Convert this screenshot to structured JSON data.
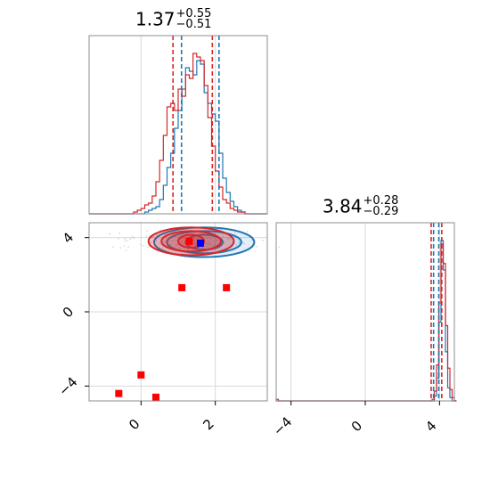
{
  "chart_data": {
    "type": "corner",
    "parameters": [
      {
        "title_value": "1.37",
        "title_plus": "+0.55",
        "title_minus": "−0.51",
        "range": [
          -1.4,
          3.4
        ],
        "ticks": [
          0,
          2
        ],
        "tick_labels": [
          "0",
          "2"
        ],
        "quantiles_red": [
          0.86,
          1.92
        ],
        "quantiles_blue": [
          1.09,
          2.1
        ]
      },
      {
        "title_value": "3.84",
        "title_plus": "+0.28",
        "title_minus": "−0.29",
        "range": [
          -4.8,
          4.8
        ],
        "ticks": [
          -4,
          0,
          4
        ],
        "tick_labels": [
          "−4",
          "0",
          "4"
        ],
        "quantiles_red": [
          3.55,
          4.12
        ],
        "quantiles_blue": [
          3.68,
          3.96
        ]
      }
    ],
    "hist_1d_param1": {
      "bin_edges_start": -1.4,
      "bin_width": 0.1,
      "red_counts": [
        0,
        0,
        0,
        0,
        0,
        0,
        0,
        0,
        0,
        0,
        0,
        0,
        1,
        2,
        3,
        5,
        6,
        10,
        18,
        30,
        44,
        60,
        62,
        58,
        70,
        66,
        78,
        76,
        90,
        88,
        86,
        72,
        54,
        38,
        24,
        15,
        8,
        6,
        3,
        2,
        1,
        1,
        0,
        0,
        0,
        0,
        0,
        0
      ],
      "blue_counts": [
        0,
        0,
        0,
        0,
        0,
        0,
        0,
        0,
        0,
        0,
        0,
        0,
        0,
        0,
        0,
        1,
        2,
        3,
        4,
        8,
        16,
        26,
        34,
        48,
        58,
        70,
        82,
        80,
        78,
        86,
        84,
        68,
        62,
        56,
        52,
        34,
        20,
        12,
        7,
        4,
        2,
        1,
        0,
        0,
        0,
        0,
        0,
        0
      ]
    },
    "hist_1d_param2": {
      "bin_edges_start": -4.8,
      "bin_width": 0.12,
      "red_counts": [
        1,
        0,
        0,
        0,
        0,
        0,
        0,
        0,
        0,
        0,
        0,
        0,
        0,
        0,
        0,
        0,
        0,
        0,
        0,
        0,
        0,
        0,
        0,
        0,
        0,
        0,
        0,
        0,
        0,
        0,
        0,
        0,
        0,
        0,
        0,
        0,
        0,
        0,
        0,
        0,
        0,
        0,
        0,
        0,
        0,
        0,
        0,
        0,
        0,
        0,
        0,
        0,
        0,
        0,
        0,
        0,
        0,
        0,
        0,
        0,
        0,
        0,
        0,
        0,
        0,
        0,
        0,
        0,
        0,
        0,
        1,
        6,
        22,
        60,
        96,
        84,
        46,
        20,
        7,
        2,
        0
      ],
      "blue_counts": [
        0,
        0,
        0,
        0,
        0,
        0,
        0,
        0,
        0,
        0,
        0,
        0,
        0,
        0,
        0,
        0,
        0,
        0,
        0,
        0,
        0,
        0,
        0,
        0,
        0,
        0,
        0,
        0,
        0,
        0,
        0,
        0,
        0,
        0,
        0,
        0,
        0,
        0,
        0,
        0,
        0,
        0,
        0,
        0,
        0,
        0,
        0,
        0,
        0,
        0,
        0,
        0,
        0,
        0,
        0,
        0,
        0,
        0,
        0,
        0,
        0,
        0,
        0,
        0,
        0,
        0,
        0,
        0,
        0,
        0,
        0,
        3,
        14,
        48,
        98,
        80,
        30,
        8,
        2,
        0,
        0
      ]
    },
    "joint_2d": {
      "red_markers": [
        {
          "x": 1.3,
          "y": 3.8
        },
        {
          "x": 1.1,
          "y": 1.3
        },
        {
          "x": 2.3,
          "y": 1.3
        },
        {
          "x": 0.0,
          "y": -3.4
        },
        {
          "x": -0.6,
          "y": -4.4
        },
        {
          "x": 0.4,
          "y": -4.6
        }
      ],
      "blue_markers": [
        {
          "x": 1.6,
          "y": 3.7
        }
      ],
      "red_contours": [
        {
          "cx": 1.35,
          "cy": 3.8,
          "rx": 0.35,
          "ry": 0.35
        },
        {
          "cx": 1.35,
          "cy": 3.8,
          "rx": 0.8,
          "ry": 0.55
        },
        {
          "cx": 1.35,
          "cy": 3.8,
          "rx": 1.15,
          "ry": 0.75
        }
      ],
      "blue_contours": [
        {
          "cx": 1.7,
          "cy": 3.75,
          "rx": 0.5,
          "ry": 0.4
        },
        {
          "cx": 1.7,
          "cy": 3.75,
          "rx": 1.0,
          "ry": 0.6
        },
        {
          "cx": 1.7,
          "cy": 3.75,
          "rx": 1.35,
          "ry": 0.8
        }
      ]
    },
    "grid": true,
    "colors": {
      "red": "#d62728",
      "blue": "#1f77b4",
      "red_marker": "#ff0000",
      "blue_marker": "#0000ff"
    }
  }
}
